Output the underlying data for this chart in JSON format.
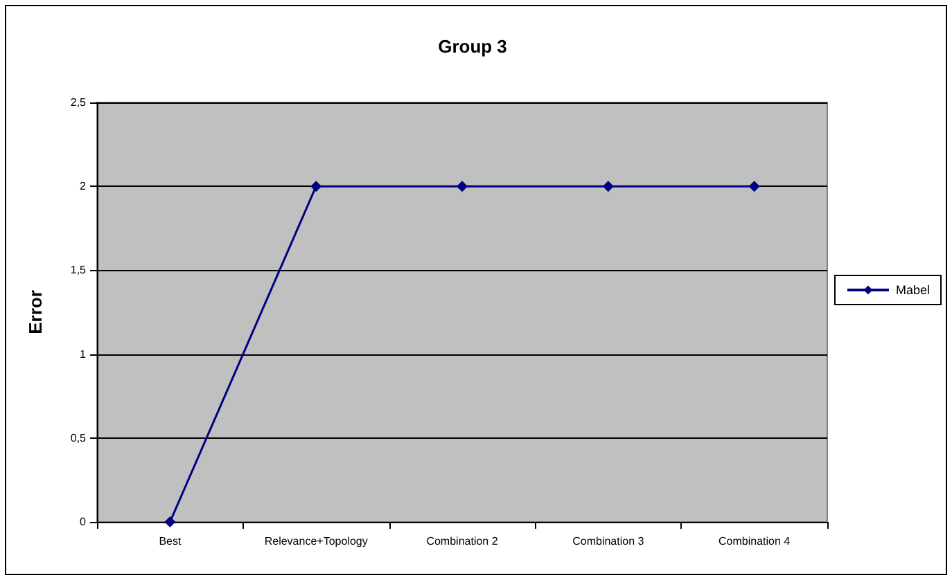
{
  "chart_data": {
    "type": "line",
    "title": "Group 3",
    "ylabel": "Error",
    "categories": [
      "Best",
      "Relevance+Topology",
      "Combination 2",
      "Combination 3",
      "Combination 4"
    ],
    "series": [
      {
        "name": "Mabel",
        "color": "#000080",
        "values": [
          0,
          2,
          2,
          2,
          2
        ]
      }
    ],
    "ylim": [
      0,
      2.5
    ],
    "yticks": [
      0,
      {
        "value": 0.5,
        "label": "0,5"
      },
      1,
      {
        "value": 1.5,
        "label": "1,5"
      },
      2,
      {
        "value": 2.5,
        "label": "2,5"
      }
    ],
    "grid": "y",
    "legend": "right",
    "marker": "diamond",
    "line_style": "solid"
  }
}
